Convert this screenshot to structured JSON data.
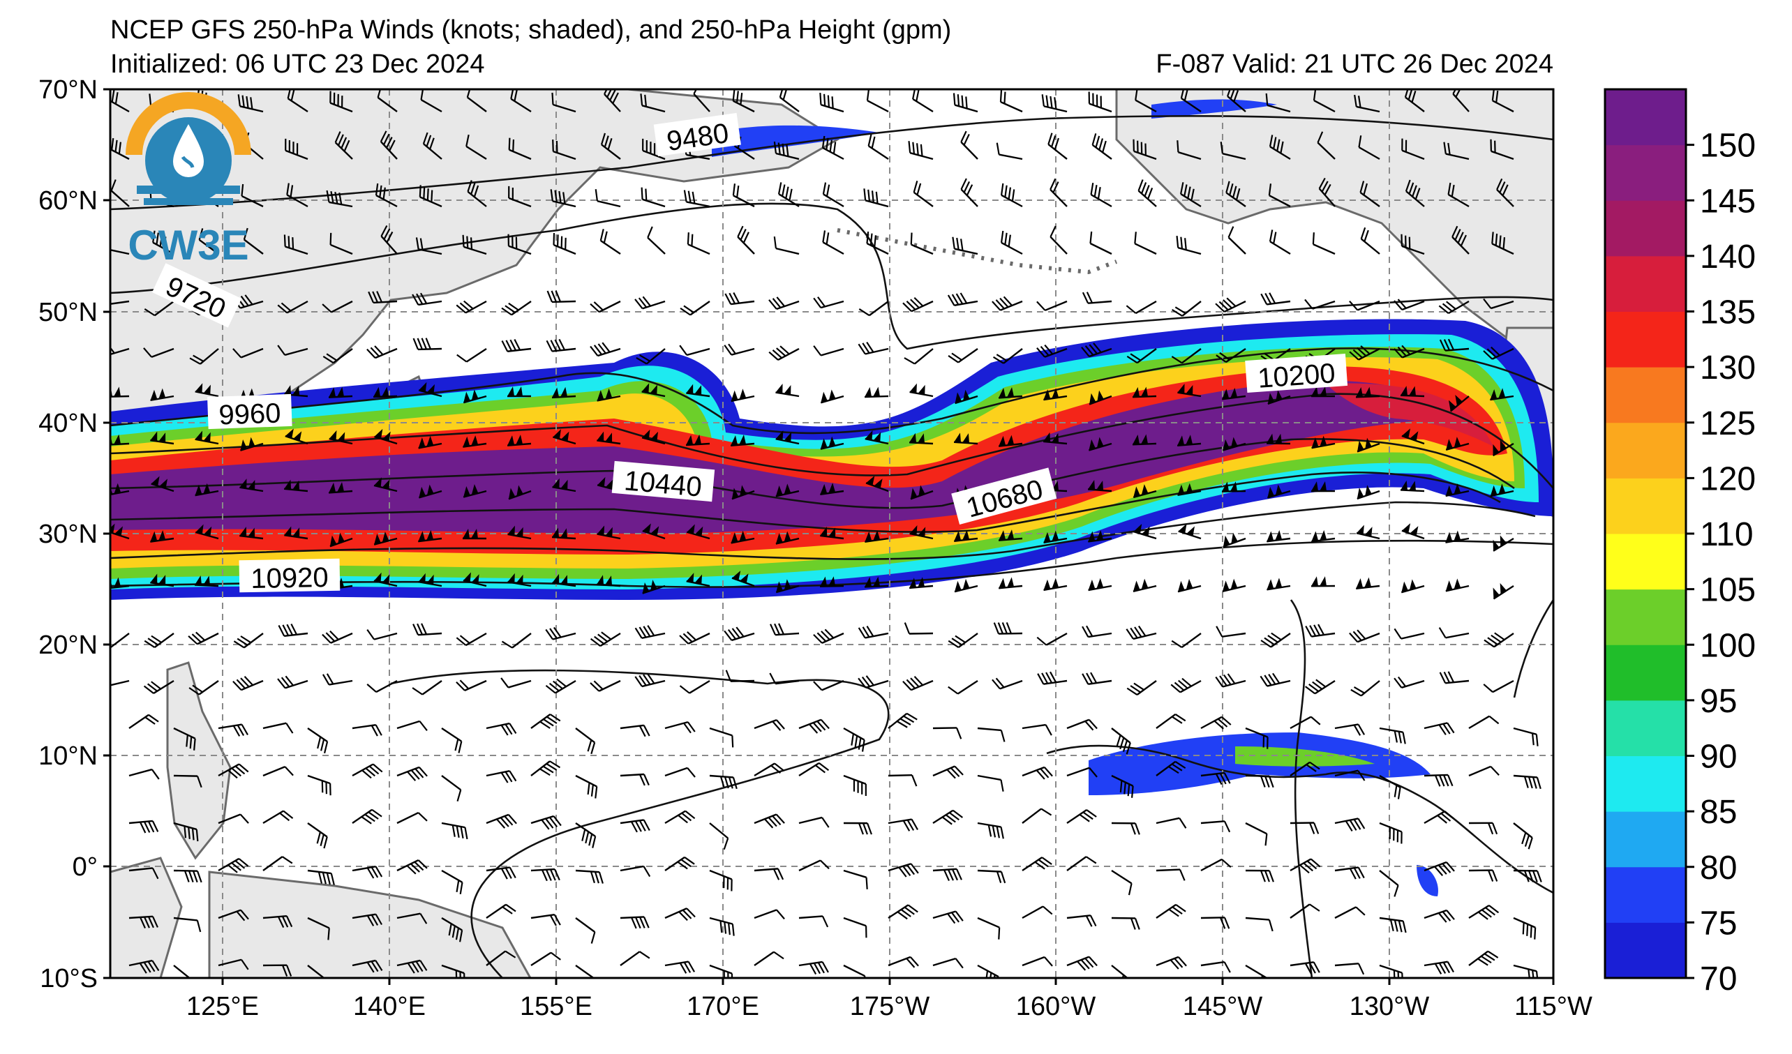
{
  "header": {
    "title": "NCEP GFS 250-hPa Winds (knots; shaded), and 250-hPa Height (gpm)",
    "initialized": "Initialized: 06 UTC 23 Dec 2024",
    "valid": "F-087  Valid: 21 UTC 26 Dec 2024"
  },
  "logo": {
    "text": "CW3E",
    "colors": {
      "sun": "#f5a623",
      "water": "#2a86b8"
    }
  },
  "map": {
    "lon_range": [
      "115°E",
      "115°W"
    ],
    "lat_range": [
      "10°S",
      "70°N"
    ],
    "lat_labels": [
      "70°N",
      "60°N",
      "50°N",
      "40°N",
      "30°N",
      "20°N",
      "10°N",
      "0°",
      "10°S"
    ],
    "lon_labels": [
      "125°E",
      "140°E",
      "155°E",
      "170°E",
      "175°W",
      "160°W",
      "145°W",
      "130°W",
      "115°W"
    ],
    "grid": "dashed",
    "land_color": "#e8e8e8",
    "contour_labels": [
      "9480",
      "9720",
      "9960",
      "10200",
      "10440",
      "10680",
      "10920"
    ]
  },
  "colorbar": {
    "unit": "knots",
    "tick_labels": [
      "70",
      "75",
      "80",
      "85",
      "90",
      "95",
      "100",
      "105",
      "110",
      "120",
      "125",
      "130",
      "135",
      "140",
      "145",
      "150"
    ],
    "bands": [
      {
        "from": 70,
        "color": "#1a1fd6"
      },
      {
        "from": 75,
        "color": "#2140f5"
      },
      {
        "from": 80,
        "color": "#1fa9f2"
      },
      {
        "from": 85,
        "color": "#1eeaf0"
      },
      {
        "from": 90,
        "color": "#25e0a8"
      },
      {
        "from": 95,
        "color": "#20be2a"
      },
      {
        "from": 100,
        "color": "#6ccf2a"
      },
      {
        "from": 105,
        "color": "#ffff1a"
      },
      {
        "from": 110,
        "color": "#fcd11c"
      },
      {
        "from": 120,
        "color": "#fba81d"
      },
      {
        "from": 125,
        "color": "#f8791f"
      },
      {
        "from": 130,
        "color": "#f42519"
      },
      {
        "from": 135,
        "color": "#d71e3c"
      },
      {
        "from": 140,
        "color": "#a31a63"
      },
      {
        "from": 145,
        "color": "#8a1e7e"
      },
      {
        "from": 150,
        "color": "#6e1d8c"
      }
    ]
  }
}
